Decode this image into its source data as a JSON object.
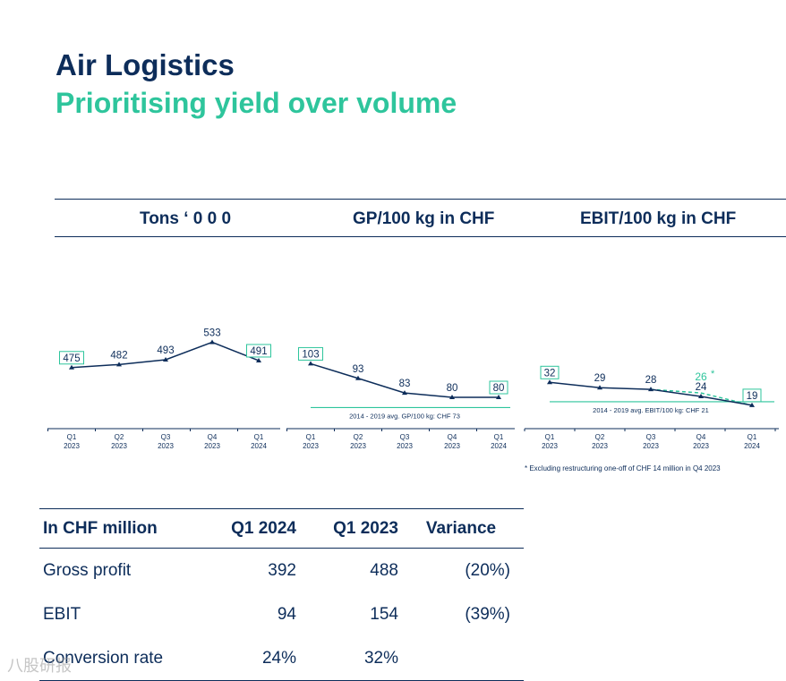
{
  "header": {
    "title": "Air Logistics",
    "subtitle": "Prioritising yield over volume"
  },
  "columns": {
    "tons": "Tons ‘  0 0 0",
    "gp": "GP/100 kg in CHF",
    "ebit": "EBIT/100 kg in CHF"
  },
  "colors": {
    "navy": "#0d2d5a",
    "green": "#2ec59c"
  },
  "chart_data": [
    {
      "type": "line",
      "name": "tons",
      "title": "Tons ‘  0 0 0",
      "categories": [
        "Q1\n2023",
        "Q2\n2023",
        "Q3\n2023",
        "Q4\n2023",
        "Q1\n2024"
      ],
      "values": [
        475,
        482,
        493,
        533,
        491
      ],
      "boxed": [
        0,
        4
      ],
      "ylim": [
        200,
        620
      ]
    },
    {
      "type": "line",
      "name": "gp",
      "title": "GP/100 kg in CHF",
      "categories": [
        "Q1\n2023",
        "Q2\n2023",
        "Q3\n2023",
        "Q4\n2023",
        "Q1\n2024"
      ],
      "values": [
        103,
        93,
        83,
        80,
        80
      ],
      "boxed": [
        0,
        4
      ],
      "ylim": [
        20,
        140
      ],
      "reference": {
        "value": 73,
        "label": "2014 - 2019 avg. GP/100 kg: CHF 73"
      }
    },
    {
      "type": "line",
      "name": "ebit",
      "title": "EBIT/100 kg in CHF",
      "categories": [
        "Q1\n2023",
        "Q2\n2023",
        "Q3\n2023",
        "Q4\n2023",
        "Q1\n2024"
      ],
      "values": [
        32,
        29,
        28,
        24,
        19
      ],
      "boxed": [
        0,
        4
      ],
      "ylim": [
        -10,
        55
      ],
      "reference": {
        "value": 21,
        "label": "2014 - 2019 avg. EBIT/100 kg: CHF 21"
      },
      "adjusted": {
        "index": 3,
        "value": 26,
        "label": "26",
        "marker": "*"
      }
    }
  ],
  "footnote": "* Excluding restructuring one-off of CHF 14 million in Q4 2023",
  "table": {
    "headers": [
      "In CHF million",
      "Q1 2024",
      "Q1 2023",
      "Variance"
    ],
    "rows": [
      [
        "Gross profit",
        "392",
        "488",
        "(20%)"
      ],
      [
        "EBIT",
        "94",
        "154",
        "(39%)"
      ],
      [
        "Conversion rate",
        "24%",
        "32%",
        ""
      ]
    ]
  },
  "watermark": "八股研报"
}
